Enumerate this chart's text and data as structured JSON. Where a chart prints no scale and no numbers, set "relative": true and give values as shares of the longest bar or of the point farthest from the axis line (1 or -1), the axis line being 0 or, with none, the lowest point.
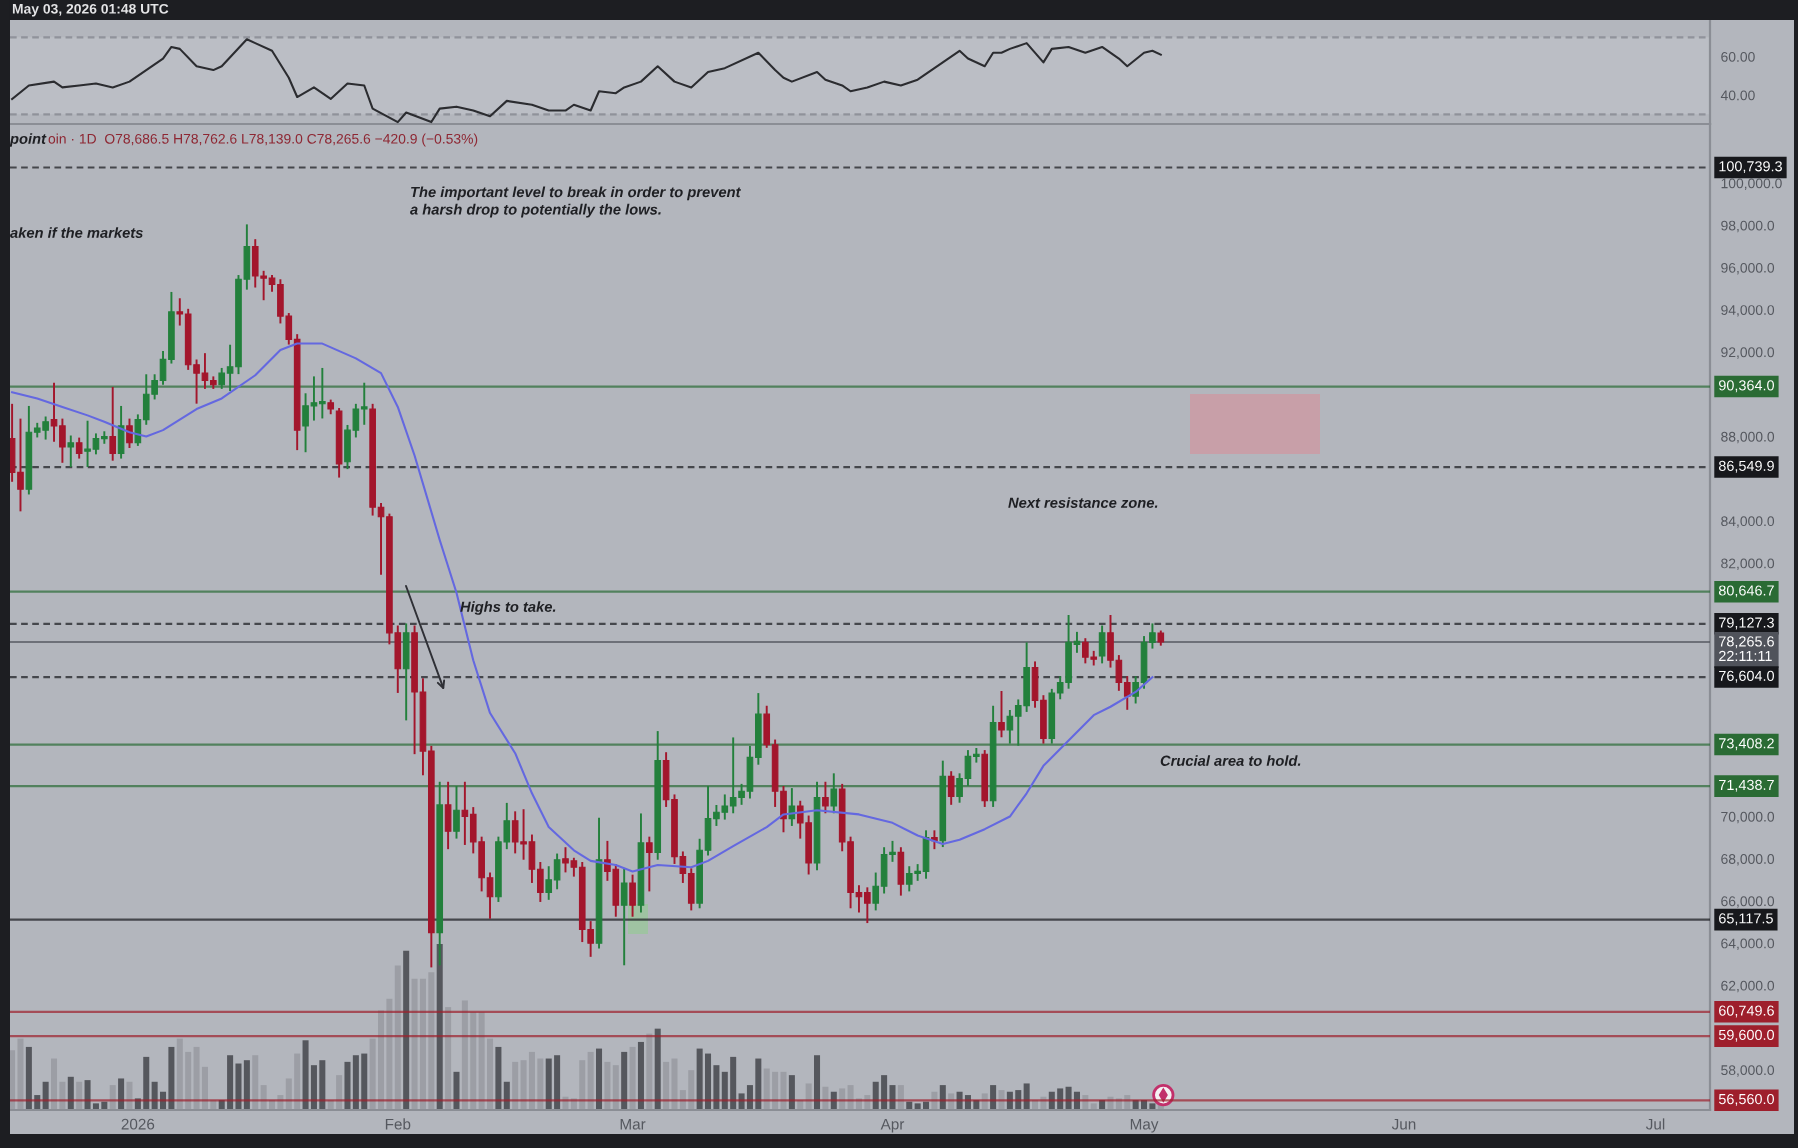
{
  "chart_data": [
    {
      "type": "line",
      "title": "May 03, 2026 01:48 UTC",
      "x": [
        "2025-12-17",
        "2025-12-19",
        "2025-12-22",
        "2025-12-23",
        "2025-12-25",
        "2025-12-27",
        "2025-12-29",
        "2025-12-31",
        "2026-01-02",
        "2026-01-04",
        "2026-01-05",
        "2026-01-06",
        "2026-01-08",
        "2026-01-10",
        "2026-01-11",
        "2026-01-14",
        "2026-01-15",
        "2026-01-17",
        "2026-01-19",
        "2026-01-20",
        "2026-01-22",
        "2026-01-24",
        "2026-01-26",
        "2026-01-28",
        "2026-01-29",
        "2026-02-01",
        "2026-02-02",
        "2026-02-05",
        "2026-02-06",
        "2026-02-08",
        "2026-02-10",
        "2026-02-12",
        "2026-02-14",
        "2026-02-17",
        "2026-02-19",
        "2026-02-21",
        "2026-02-22",
        "2026-02-24",
        "2026-02-25",
        "2026-02-27",
        "2026-02-28",
        "2026-03-02",
        "2026-03-04",
        "2026-03-06",
        "2026-03-08",
        "2026-03-10",
        "2026-03-12",
        "2026-03-16",
        "2026-03-18",
        "2026-03-19",
        "2026-03-20",
        "2026-03-23",
        "2026-03-24",
        "2026-03-26",
        "2026-03-27",
        "2026-03-29",
        "2026-03-31",
        "2026-04-02",
        "2026-04-04",
        "2026-04-05",
        "2026-04-07",
        "2026-04-09",
        "2026-04-10",
        "2026-04-12",
        "2026-04-13",
        "2026-04-14",
        "2026-04-15",
        "2026-04-17",
        "2026-04-19",
        "2026-04-20",
        "2026-04-22",
        "2026-04-24",
        "2026-04-26",
        "2026-04-28",
        "2026-04-29",
        "2026-05-01",
        "2026-05-02",
        "2026-05-03"
      ],
      "values": [
        38,
        45,
        47,
        44,
        45,
        46,
        44,
        47,
        53,
        59,
        65,
        64,
        55,
        53,
        55,
        69,
        67,
        63,
        49,
        39,
        44,
        38,
        46,
        45,
        33,
        26,
        31,
        26,
        33,
        34,
        32,
        29,
        37,
        35,
        32,
        32,
        35,
        32,
        42,
        41,
        44,
        47,
        55,
        47,
        44,
        52,
        54,
        62,
        53,
        49,
        47,
        52,
        48,
        45,
        42,
        44,
        47,
        45,
        48,
        51,
        57,
        63,
        59,
        55,
        62,
        62,
        64,
        67,
        57,
        64,
        65,
        62,
        65,
        59,
        55,
        62,
        63,
        61
      ],
      "color": "#2b2c30",
      "xlim": [
        "2025-12-16T18:00",
        "2026-07-07T12:00"
      ],
      "ylim": [
        25,
        79
      ],
      "yticks": [
        {
          "value": 40,
          "label": "40.00"
        },
        {
          "value": 60,
          "label": "60.00"
        }
      ],
      "tick_labels": "y",
      "bands": [
        {
          "axis": "y",
          "from": 30,
          "to": 70,
          "color": "#bbbec5"
        }
      ],
      "ref_lines": [
        {
          "axis": "y",
          "value": 70,
          "color": "#7f828a",
          "line_style": "dashed"
        },
        {
          "axis": "y",
          "value": 30,
          "color": "#7f828a",
          "line_style": "dashed"
        }
      ]
    },
    {
      "type": "candlestick",
      "subtitle": "oin · 1D  O78,686.5 H78,762.6 L78,139.0 C78,265.6 −420.9 (−0.53%)",
      "series": [
        {
          "type": "candlestick",
          "color": "#23803c",
          "x": [
            "2025-12-19",
            "2025-12-20",
            "2025-12-21",
            "2025-12-24",
            "2025-12-26",
            "2025-12-27",
            "2025-12-28",
            "2025-12-30",
            "2026-01-01",
            "2026-01-02",
            "2026-01-03",
            "2026-01-04",
            "2026-01-05",
            "2026-01-11",
            "2026-01-12",
            "2026-01-13",
            "2026-01-14",
            "2026-01-21",
            "2026-01-22",
            "2026-01-23",
            "2026-01-26",
            "2026-01-27",
            "2026-01-28",
            "2026-02-02",
            "2026-02-06",
            "2026-02-08",
            "2026-02-13",
            "2026-02-14",
            "2026-02-19",
            "2026-02-20",
            "2026-02-25",
            "2026-02-28",
            "2026-03-02",
            "2026-03-04",
            "2026-03-09",
            "2026-03-10",
            "2026-03-11",
            "2026-03-12",
            "2026-03-13",
            "2026-03-14",
            "2026-03-15",
            "2026-03-16",
            "2026-03-20",
            "2026-03-23",
            "2026-03-25",
            "2026-03-30",
            "2026-03-31",
            "2026-04-01",
            "2026-04-03",
            "2026-04-04",
            "2026-04-05",
            "2026-04-07",
            "2026-04-09",
            "2026-04-10",
            "2026-04-11",
            "2026-04-13",
            "2026-04-15",
            "2026-04-16",
            "2026-04-17",
            "2026-04-20",
            "2026-04-21",
            "2026-04-22",
            "2026-04-23",
            "2026-04-26",
            "2026-04-30",
            "2026-05-01",
            "2026-05-02"
          ],
          "ohlc": [
            [
              85500,
              89400,
              85300,
              88200
            ],
            [
              88200,
              88600,
              88000,
              88400
            ],
            [
              88300,
              88900,
              87900,
              88700
            ],
            [
              87500,
              88000,
              86600,
              87700
            ],
            [
              87300,
              88700,
              86600,
              87400
            ],
            [
              87400,
              88100,
              87200,
              87900
            ],
            [
              87900,
              88200,
              87700,
              88000
            ],
            [
              87200,
              89400,
              87000,
              88500
            ],
            [
              87700,
              89000,
              87600,
              88800
            ],
            [
              88800,
              90900,
              88600,
              90000
            ],
            [
              90000,
              90900,
              89800,
              90650
            ],
            [
              90650,
              92000,
              90500,
              91650
            ],
            [
              91650,
              94800,
              91500,
              93900
            ],
            [
              90450,
              91200,
              90300,
              91000
            ],
            [
              91000,
              92300,
              90200,
              91300
            ],
            [
              91300,
              95600,
              91000,
              95450
            ],
            [
              95450,
              98000,
              95000,
              97000
            ],
            [
              88500,
              90000,
              87300,
              89450
            ],
            [
              89450,
              90800,
              88800,
              89600
            ],
            [
              89550,
              91200,
              88900,
              89650
            ],
            [
              86800,
              88500,
              86500,
              88300
            ],
            [
              88300,
              89500,
              88000,
              89300
            ],
            [
              89300,
              90500,
              88600,
              89400
            ],
            [
              77000,
              79100,
              74600,
              78700
            ],
            [
              64500,
              71600,
              63000,
              70550
            ],
            [
              69300,
              71400,
              69000,
              70300
            ],
            [
              66200,
              69000,
              66000,
              68800
            ],
            [
              68800,
              70600,
              68500,
              69800
            ],
            [
              66400,
              67600,
              66100,
              67000
            ],
            [
              67000,
              68200,
              66600,
              67950
            ],
            [
              64000,
              69900,
              63800,
              67950
            ],
            [
              65800,
              67500,
              63000,
              66850
            ],
            [
              65800,
              70100,
              65500,
              68750
            ],
            [
              68300,
              74000,
              68000,
              72650
            ],
            [
              65900,
              68900,
              65700,
              68400
            ],
            [
              68400,
              71400,
              68200,
              69900
            ],
            [
              69900,
              70500,
              69600,
              70200
            ],
            [
              70200,
              71000,
              69900,
              70500
            ],
            [
              70500,
              73700,
              70200,
              70900
            ],
            [
              70900,
              71500,
              70600,
              71200
            ],
            [
              71200,
              73300,
              70900,
              72800
            ],
            [
              72800,
              75800,
              72500,
              74850
            ],
            [
              69900,
              71300,
              69600,
              70500
            ],
            [
              67800,
              71600,
              67500,
              70900
            ],
            [
              70500,
              72000,
              70200,
              71300
            ],
            [
              65900,
              67300,
              65600,
              66700
            ],
            [
              66700,
              68500,
              66400,
              68200
            ],
            [
              68200,
              68800,
              67900,
              68300
            ],
            [
              66800,
              67600,
              66500,
              67300
            ],
            [
              67300,
              67700,
              67000,
              67400
            ],
            [
              67400,
              69300,
              67100,
              69000
            ],
            [
              68850,
              72600,
              68600,
              71900
            ],
            [
              70950,
              72000,
              70700,
              71800
            ],
            [
              71800,
              73100,
              71500,
              72850
            ],
            [
              72850,
              73200,
              72600,
              72950
            ],
            [
              70750,
              75200,
              70500,
              74450
            ],
            [
              74100,
              75000,
              73500,
              74750
            ],
            [
              74750,
              75500,
              73400,
              75250
            ],
            [
              75250,
              78200,
              75000,
              77050
            ],
            [
              73700,
              76000,
              73500,
              75850
            ],
            [
              75850,
              76600,
              75600,
              76350
            ],
            [
              76350,
              79500,
              76100,
              78250
            ],
            [
              78150,
              78700,
              77800,
              78300
            ],
            [
              77600,
              79000,
              77300,
              78700
            ],
            [
              75700,
              76600,
              75400,
              76350
            ],
            [
              76350,
              78500,
              76100,
              78250
            ],
            [
              78250,
              79100,
              78000,
              78700
            ]
          ]
        },
        {
          "type": "candlestick",
          "color": "#a3162c",
          "x": [
            "2025-12-17",
            "2025-12-18",
            "2025-12-22",
            "2025-12-23",
            "2025-12-25",
            "2025-12-29",
            "2025-12-31",
            "2026-01-06",
            "2026-01-07",
            "2026-01-08",
            "2026-01-09",
            "2026-01-10",
            "2026-01-15",
            "2026-01-16",
            "2026-01-17",
            "2026-01-18",
            "2026-01-19",
            "2026-01-20",
            "2026-01-24",
            "2026-01-25",
            "2026-01-29",
            "2026-01-30",
            "2026-01-31",
            "2026-02-01",
            "2026-02-03",
            "2026-02-04",
            "2026-02-05",
            "2026-02-07",
            "2026-02-09",
            "2026-02-10",
            "2026-02-11",
            "2026-02-12",
            "2026-02-15",
            "2026-02-16",
            "2026-02-17",
            "2026-02-18",
            "2026-02-21",
            "2026-02-22",
            "2026-02-23",
            "2026-02-24",
            "2026-02-26",
            "2026-02-27",
            "2026-03-01",
            "2026-03-03",
            "2026-03-05",
            "2026-03-06",
            "2026-03-07",
            "2026-03-08",
            "2026-03-17",
            "2026-03-18",
            "2026-03-19",
            "2026-03-21",
            "2026-03-22",
            "2026-03-24",
            "2026-03-26",
            "2026-03-27",
            "2026-03-28",
            "2026-03-29",
            "2026-04-02",
            "2026-04-06",
            "2026-04-08",
            "2026-04-12",
            "2026-04-14",
            "2026-04-18",
            "2026-04-19",
            "2026-04-24",
            "2026-04-25",
            "2026-04-27",
            "2026-04-28",
            "2026-04-29",
            "2026-05-03"
          ],
          "ohlc": [
            [
              87900,
              89500,
              85900,
              86300
            ],
            [
              86300,
              88800,
              84500,
              85500
            ],
            [
              88800,
              90500,
              87800,
              88500
            ],
            [
              88500,
              88800,
              86800,
              87500
            ],
            [
              87700,
              87900,
              87000,
              87200
            ],
            [
              88000,
              90300,
              86900,
              87200
            ],
            [
              88500,
              88800,
              87500,
              87700
            ],
            [
              93900,
              94500,
              93300,
              93800
            ],
            [
              93800,
              94000,
              91200,
              91400
            ],
            [
              91400,
              91600,
              89600,
              91000
            ],
            [
              91000,
              91900,
              90300,
              90650
            ],
            [
              90650,
              90800,
              90300,
              90450
            ],
            [
              97000,
              97300,
              95100,
              95600
            ],
            [
              95600,
              95800,
              94500,
              95500
            ],
            [
              95500,
              95600,
              94900,
              95200
            ],
            [
              95200,
              95400,
              93400,
              93700
            ],
            [
              93700,
              93800,
              92400,
              92600
            ],
            [
              92600,
              92800,
              87400,
              88300
            ],
            [
              89600,
              89700,
              89100,
              89300
            ],
            [
              89200,
              89300,
              86100,
              86700
            ],
            [
              89300,
              89500,
              84300,
              84650
            ],
            [
              84650,
              84800,
              81500,
              84200
            ],
            [
              84200,
              84300,
              78200,
              78700
            ],
            [
              78700,
              79000,
              75900,
              77000
            ],
            [
              78700,
              79000,
              73000,
              75900
            ],
            [
              75900,
              76500,
              72000,
              73100
            ],
            [
              73100,
              73300,
              62900,
              64500
            ],
            [
              70550,
              71600,
              68500,
              69300
            ],
            [
              70300,
              71600,
              68700,
              70000
            ],
            [
              70100,
              70400,
              68300,
              68800
            ],
            [
              68800,
              69000,
              66500,
              67100
            ],
            [
              67100,
              67300,
              65200,
              66200
            ],
            [
              69800,
              70200,
              68300,
              68800
            ],
            [
              68800,
              70300,
              68000,
              68700
            ],
            [
              68800,
              69100,
              66900,
              67500
            ],
            [
              67500,
              67800,
              66000,
              66400
            ],
            [
              68000,
              68500,
              67400,
              67800
            ],
            [
              67900,
              68000,
              67200,
              67600
            ],
            [
              67600,
              67800,
              64100,
              64650
            ],
            [
              64650,
              65000,
              63400,
              64000
            ],
            [
              67950,
              68800,
              67000,
              67400
            ],
            [
              67500,
              67700,
              65300,
              65800
            ],
            [
              66850,
              67200,
              65300,
              65800
            ],
            [
              68750,
              69000,
              66500,
              68300
            ],
            [
              72650,
              73000,
              70500,
              70800
            ],
            [
              70800,
              71000,
              67800,
              68100
            ],
            [
              68100,
              68300,
              66900,
              67300
            ],
            [
              67300,
              67500,
              65600,
              65900
            ],
            [
              74850,
              75200,
              73300,
              73400
            ],
            [
              73400,
              73600,
              70500,
              71200
            ],
            [
              71200,
              71400,
              69300,
              69900
            ],
            [
              70500,
              70700,
              69000,
              69700
            ],
            [
              69700,
              70000,
              67300,
              67800
            ],
            [
              70900,
              71600,
              70200,
              70500
            ],
            [
              71300,
              71500,
              68400,
              68800
            ],
            [
              68800,
              69000,
              65700,
              66400
            ],
            [
              66400,
              66700,
              65500,
              66200
            ],
            [
              66400,
              66600,
              65000,
              65900
            ],
            [
              68300,
              68500,
              66300,
              66800
            ],
            [
              69000,
              69300,
              68500,
              68850
            ],
            [
              71900,
              72100,
              70600,
              70950
            ],
            [
              72950,
              73100,
              70500,
              70750
            ],
            [
              74450,
              75900,
              73800,
              74100
            ],
            [
              77050,
              77300,
              75200,
              75500
            ],
            [
              75500,
              75700,
              73500,
              73700
            ],
            [
              78250,
              78400,
              77300,
              77550
            ],
            [
              77550,
              77800,
              77200,
              77450
            ],
            [
              78700,
              79500,
              77100,
              77400
            ],
            [
              77400,
              77600,
              76000,
              76350
            ],
            [
              76350,
              76600,
              75100,
              75700
            ],
            [
              78686.5,
              78762.6,
              78139.0,
              78265.6
            ]
          ]
        },
        {
          "type": "line",
          "color": "#6468e0",
          "x": [
            "2025-12-17",
            "2025-12-20",
            "2025-12-23",
            "2025-12-26",
            "2025-12-28",
            "2025-12-31",
            "2026-01-02",
            "2026-01-04",
            "2026-01-08",
            "2026-01-11",
            "2026-01-15",
            "2026-01-18",
            "2026-01-20",
            "2026-01-23",
            "2026-01-27",
            "2026-01-30",
            "2026-02-01",
            "2026-02-03",
            "2026-02-06",
            "2026-02-08",
            "2026-02-10",
            "2026-02-12",
            "2026-02-15",
            "2026-02-17",
            "2026-02-19",
            "2026-02-22",
            "2026-02-24",
            "2026-02-27",
            "2026-03-01",
            "2026-03-04",
            "2026-03-08",
            "2026-03-10",
            "2026-03-13",
            "2026-03-17",
            "2026-03-19",
            "2026-03-23",
            "2026-03-28",
            "2026-04-01",
            "2026-04-04",
            "2026-04-07",
            "2026-04-09",
            "2026-04-12",
            "2026-04-15",
            "2026-04-17",
            "2026-04-19",
            "2026-04-22",
            "2026-04-25",
            "2026-04-27",
            "2026-04-30",
            "2026-05-02"
          ],
          "values": [
            90100,
            89800,
            89400,
            89000,
            88700,
            88200,
            88000,
            88300,
            89300,
            89800,
            90900,
            92100,
            92400,
            92400,
            91700,
            91000,
            89400,
            87100,
            83100,
            80600,
            77400,
            74900,
            73000,
            71100,
            69500,
            68400,
            67900,
            67700,
            67400,
            67700,
            67600,
            67900,
            68600,
            69500,
            70100,
            70300,
            70100,
            69700,
            69100,
            68700,
            68900,
            69400,
            70000,
            71100,
            72400,
            73600,
            74800,
            75200,
            75900,
            76600
          ]
        }
      ],
      "xlim": [
        "2025-12-16T18:00",
        "2026-07-07T12:00"
      ],
      "xticks": [
        {
          "value": "2026-01-01",
          "label": "2026"
        },
        {
          "value": "2026-02-01",
          "label": "Feb"
        },
        {
          "value": "2026-03-01",
          "label": "Mar"
        },
        {
          "value": "2026-04-01",
          "label": "Apr"
        },
        {
          "value": "2026-05-01",
          "label": "May"
        },
        {
          "value": "2026-06-01",
          "label": "Jun"
        },
        {
          "value": "2026-07-01",
          "label": "Jul"
        }
      ],
      "ylim": [
        56100,
        102800
      ],
      "yticks": [
        {
          "value": 58000,
          "label": "58,000.0"
        },
        {
          "value": 62000,
          "label": "62,000.0"
        },
        {
          "value": 64000,
          "label": "64,000.0"
        },
        {
          "value": 66000,
          "label": "66,000.0"
        },
        {
          "value": 68000,
          "label": "68,000.0"
        },
        {
          "value": 70000,
          "label": "70,000.0"
        },
        {
          "value": 82000,
          "label": "82,000.0"
        },
        {
          "value": 84000,
          "label": "84,000.0"
        },
        {
          "value": 88000,
          "label": "88,000.0"
        },
        {
          "value": 92000,
          "label": "92,000.0"
        },
        {
          "value": 94000,
          "label": "94,000.0"
        },
        {
          "value": 96000,
          "label": "96,000.0"
        },
        {
          "value": 98000,
          "label": "98,000.0"
        },
        {
          "value": 100000,
          "label": "100,000.0"
        }
      ],
      "ref_lines": [
        {
          "axis": "y",
          "value": 100739.3,
          "label": "100,739.3",
          "color": "#17181c",
          "line_style": "dashed"
        },
        {
          "axis": "y",
          "value": 90364.0,
          "label": "90,364.0",
          "color": "#2a6b34",
          "line_style": "solid"
        },
        {
          "axis": "y",
          "value": 86549.9,
          "label": "86,549.9",
          "color": "#17181c",
          "line_style": "dashed"
        },
        {
          "axis": "y",
          "value": 80646.7,
          "label": "80,646.7",
          "color": "#2a6b34",
          "line_style": "solid"
        },
        {
          "axis": "y",
          "value": 79127.3,
          "label": "79,127.3",
          "color": "#17181c",
          "line_style": "dashed"
        },
        {
          "axis": "y",
          "value": 78265.6,
          "label": "78,265.6\n22:11:11",
          "color": "#50535b",
          "line_style": "solid"
        },
        {
          "axis": "y",
          "value": 76604.0,
          "label": "76,604.0",
          "color": "#17181c",
          "line_style": "dashed"
        },
        {
          "axis": "y",
          "value": 73408.2,
          "label": "73,408.2",
          "color": "#2a6b34",
          "line_style": "solid"
        },
        {
          "axis": "y",
          "value": 71438.7,
          "label": "71,438.7",
          "color": "#2a6b34",
          "line_style": "solid"
        },
        {
          "axis": "y",
          "value": 65117.5,
          "label": "65,117.5",
          "color": "#17181c",
          "line_style": "solid"
        },
        {
          "axis": "y",
          "value": 60749.6,
          "label": "60,749.6",
          "color": "#9e1f2c",
          "line_style": "solid"
        },
        {
          "axis": "y",
          "value": 59600.0,
          "label": "59,600.0",
          "color": "#9e1f2c",
          "line_style": "solid"
        },
        {
          "axis": "y",
          "value": 56560.0,
          "label": "56,560.0",
          "color": "#9e1f2c",
          "line_style": "solid"
        }
      ],
      "annotations": [
        "The important level to break in order to prevent\na harsh drop to potentially the lows.",
        "aken if the markets",
        "point",
        "Next resistance zone.",
        "Highs to take.",
        "Crucial area to hold."
      ]
    },
    {
      "type": "bar",
      "relative": true,
      "tick_labels": false,
      "xlim": [
        "2025-12-16T18:00",
        "2026-07-07T12:00"
      ],
      "series": [
        {
          "color": "#55575d",
          "x": [
            "2025-12-19",
            "2025-12-20",
            "2025-12-21",
            "2025-12-24",
            "2025-12-26",
            "2025-12-27",
            "2025-12-28",
            "2025-12-30",
            "2026-01-01",
            "2026-01-02",
            "2026-01-03",
            "2026-01-04",
            "2026-01-05",
            "2026-01-11",
            "2026-01-12",
            "2026-01-13",
            "2026-01-14",
            "2026-01-21",
            "2026-01-22",
            "2026-01-23",
            "2026-01-26",
            "2026-01-27",
            "2026-01-28",
            "2026-02-02",
            "2026-02-06",
            "2026-02-08",
            "2026-02-13",
            "2026-02-14",
            "2026-02-19",
            "2026-02-20",
            "2026-02-25",
            "2026-02-28",
            "2026-03-02",
            "2026-03-04",
            "2026-03-09",
            "2026-03-10",
            "2026-03-11",
            "2026-03-12",
            "2026-03-13",
            "2026-03-14",
            "2026-03-15",
            "2026-03-16",
            "2026-03-20",
            "2026-03-23",
            "2026-03-25",
            "2026-03-30",
            "2026-03-31",
            "2026-04-01",
            "2026-04-03",
            "2026-04-04",
            "2026-04-05",
            "2026-04-07",
            "2026-04-09",
            "2026-04-10",
            "2026-04-11",
            "2026-04-13",
            "2026-04-15",
            "2026-04-16",
            "2026-04-17",
            "2026-04-20",
            "2026-04-21",
            "2026-04-22",
            "2026-04-23",
            "2026-04-26",
            "2026-04-30",
            "2026-05-01",
            "2026-05-02"
          ],
          "values": [
            0.38,
            0.09,
            0.17,
            0.2,
            0.18,
            0.04,
            0.05,
            0.19,
            0.07,
            0.32,
            0.17,
            0.11,
            0.38,
            0.06,
            0.33,
            0.28,
            0.3,
            0.42,
            0.27,
            0.3,
            0.29,
            0.33,
            0.34,
            0.96,
            1,
            0.23,
            0.38,
            0.17,
            0.31,
            0.33,
            0.37,
            0.35,
            0.41,
            0.49,
            0.37,
            0.34,
            0.27,
            0.23,
            0.32,
            0.1,
            0.15,
            0.31,
            0.21,
            0.33,
            0.11,
            0.17,
            0.21,
            0.15,
            0.05,
            0.04,
            0.05,
            0.15,
            0.11,
            0.09,
            0.06,
            0.15,
            0.11,
            0.12,
            0.16,
            0.11,
            0.13,
            0.14,
            0.11,
            0.06,
            0.06,
            0.06,
            0.04
          ]
        },
        {
          "color": "#9c9ea5",
          "x": [
            "2025-12-17",
            "2025-12-18",
            "2025-12-22",
            "2025-12-23",
            "2025-12-25",
            "2025-12-29",
            "2025-12-31",
            "2026-01-06",
            "2026-01-07",
            "2026-01-08",
            "2026-01-09",
            "2026-01-10",
            "2026-01-15",
            "2026-01-16",
            "2026-01-17",
            "2026-01-18",
            "2026-01-19",
            "2026-01-20",
            "2026-01-24",
            "2026-01-25",
            "2026-01-29",
            "2026-01-30",
            "2026-01-31",
            "2026-02-01",
            "2026-02-03",
            "2026-02-04",
            "2026-02-05",
            "2026-02-07",
            "2026-02-09",
            "2026-02-10",
            "2026-02-11",
            "2026-02-12",
            "2026-02-15",
            "2026-02-16",
            "2026-02-17",
            "2026-02-18",
            "2026-02-21",
            "2026-02-22",
            "2026-02-23",
            "2026-02-24",
            "2026-02-26",
            "2026-02-27",
            "2026-03-01",
            "2026-03-03",
            "2026-03-05",
            "2026-03-06",
            "2026-03-07",
            "2026-03-08",
            "2026-03-17",
            "2026-03-18",
            "2026-03-19",
            "2026-03-21",
            "2026-03-22",
            "2026-03-24",
            "2026-03-26",
            "2026-03-27",
            "2026-03-28",
            "2026-03-29",
            "2026-04-02",
            "2026-04-06",
            "2026-04-08",
            "2026-04-12",
            "2026-04-14",
            "2026-04-18",
            "2026-04-19",
            "2026-04-24",
            "2026-04-25",
            "2026-04-27",
            "2026-04-28",
            "2026-04-29",
            "2026-05-03"
          ],
          "values": [
            0.36,
            0.43,
            0.31,
            0.17,
            0.17,
            0.15,
            0.17,
            0.43,
            0.35,
            0.38,
            0.26,
            0.06,
            0.33,
            0.15,
            0.06,
            0.09,
            0.19,
            0.34,
            0.06,
            0.21,
            0.43,
            0.6,
            0.67,
            0.87,
            0.79,
            0.79,
            0.83,
            0.62,
            0.66,
            0.59,
            0.59,
            0.43,
            0.29,
            0.3,
            0.35,
            0.31,
            0.08,
            0.07,
            0.3,
            0.35,
            0.29,
            0.27,
            0.38,
            0.46,
            0.29,
            0.31,
            0.12,
            0.24,
            0.25,
            0.23,
            0.23,
            0.06,
            0.16,
            0.14,
            0.13,
            0.15,
            0.07,
            0.09,
            0.15,
            0.11,
            0.1,
            0.1,
            0.12,
            0.06,
            0.08,
            0.09,
            0.04,
            0.08,
            0.07,
            0.09,
            0.03
          ]
        }
      ]
    }
  ]
}
